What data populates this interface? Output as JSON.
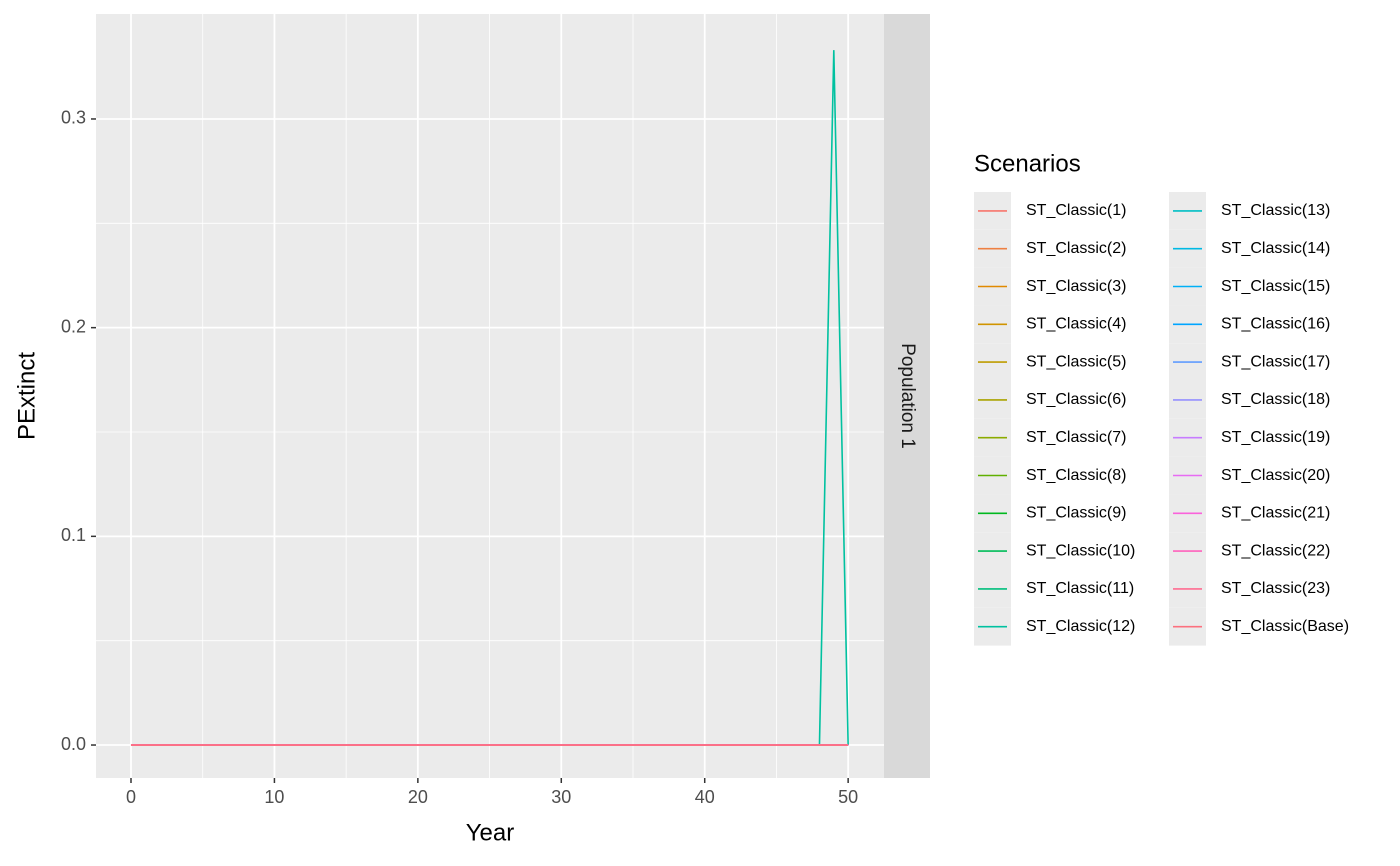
{
  "chart_data": {
    "type": "line",
    "x_label": "Year",
    "y_label": "PExtinct",
    "facet_label": "Population 1",
    "legend_title": "Scenarios",
    "grid": true,
    "xlim": [
      -2.44,
      52.5
    ],
    "ylim": [
      -0.0158,
      0.3503
    ],
    "xticks": [
      0,
      10,
      20,
      30,
      40,
      50
    ],
    "yticks": [
      {
        "value": 0,
        "label": "0.0"
      },
      0.1,
      0.2,
      0.3
    ],
    "x": [
      0,
      1,
      2,
      3,
      4,
      5,
      6,
      7,
      8,
      9,
      10,
      11,
      12,
      13,
      14,
      15,
      16,
      17,
      18,
      19,
      20,
      21,
      22,
      23,
      24,
      25,
      26,
      27,
      28,
      29,
      30,
      31,
      32,
      33,
      34,
      35,
      36,
      37,
      38,
      39,
      40,
      41,
      42,
      43,
      44,
      45,
      46,
      47,
      48,
      49,
      50
    ],
    "series": [
      {
        "name": "ST_Classic(1)",
        "color": "#F8766D",
        "values": [
          0,
          0,
          0,
          0,
          0,
          0,
          0,
          0,
          0,
          0,
          0,
          0,
          0,
          0,
          0,
          0,
          0,
          0,
          0,
          0,
          0,
          0,
          0,
          0,
          0,
          0,
          0,
          0,
          0,
          0,
          0,
          0,
          0,
          0,
          0,
          0,
          0,
          0,
          0,
          0,
          0,
          0,
          0,
          0,
          0,
          0,
          0,
          0,
          0,
          0,
          0
        ]
      },
      {
        "name": "ST_Classic(2)",
        "color": "#EE8043",
        "values": [
          0,
          0,
          0,
          0,
          0,
          0,
          0,
          0,
          0,
          0,
          0,
          0,
          0,
          0,
          0,
          0,
          0,
          0,
          0,
          0,
          0,
          0,
          0,
          0,
          0,
          0,
          0,
          0,
          0,
          0,
          0,
          0,
          0,
          0,
          0,
          0,
          0,
          0,
          0,
          0,
          0,
          0,
          0,
          0,
          0,
          0,
          0,
          0,
          0,
          0,
          0
        ]
      },
      {
        "name": "ST_Classic(3)",
        "color": "#E18A00",
        "values": [
          0,
          0,
          0,
          0,
          0,
          0,
          0,
          0,
          0,
          0,
          0,
          0,
          0,
          0,
          0,
          0,
          0,
          0,
          0,
          0,
          0,
          0,
          0,
          0,
          0,
          0,
          0,
          0,
          0,
          0,
          0,
          0,
          0,
          0,
          0,
          0,
          0,
          0,
          0,
          0,
          0,
          0,
          0,
          0,
          0,
          0,
          0,
          0,
          0,
          0,
          0
        ]
      },
      {
        "name": "ST_Classic(4)",
        "color": "#D09400",
        "values": [
          0,
          0,
          0,
          0,
          0,
          0,
          0,
          0,
          0,
          0,
          0,
          0,
          0,
          0,
          0,
          0,
          0,
          0,
          0,
          0,
          0,
          0,
          0,
          0,
          0,
          0,
          0,
          0,
          0,
          0,
          0,
          0,
          0,
          0,
          0,
          0,
          0,
          0,
          0,
          0,
          0,
          0,
          0,
          0,
          0,
          0,
          0,
          0,
          0,
          0,
          0
        ]
      },
      {
        "name": "ST_Classic(5)",
        "color": "#BE9C00",
        "values": [
          0,
          0,
          0,
          0,
          0,
          0,
          0,
          0,
          0,
          0,
          0,
          0,
          0,
          0,
          0,
          0,
          0,
          0,
          0,
          0,
          0,
          0,
          0,
          0,
          0,
          0,
          0,
          0,
          0,
          0,
          0,
          0,
          0,
          0,
          0,
          0,
          0,
          0,
          0,
          0,
          0,
          0,
          0,
          0,
          0,
          0,
          0,
          0,
          0,
          0,
          0
        ]
      },
      {
        "name": "ST_Classic(6)",
        "color": "#AAA300",
        "values": [
          0,
          0,
          0,
          0,
          0,
          0,
          0,
          0,
          0,
          0,
          0,
          0,
          0,
          0,
          0,
          0,
          0,
          0,
          0,
          0,
          0,
          0,
          0,
          0,
          0,
          0,
          0,
          0,
          0,
          0,
          0,
          0,
          0,
          0,
          0,
          0,
          0,
          0,
          0,
          0,
          0,
          0,
          0,
          0,
          0,
          0,
          0,
          0,
          0,
          0,
          0
        ]
      },
      {
        "name": "ST_Classic(7)",
        "color": "#8CAB00",
        "values": [
          0,
          0,
          0,
          0,
          0,
          0,
          0,
          0,
          0,
          0,
          0,
          0,
          0,
          0,
          0,
          0,
          0,
          0,
          0,
          0,
          0,
          0,
          0,
          0,
          0,
          0,
          0,
          0,
          0,
          0,
          0,
          0,
          0,
          0,
          0,
          0,
          0,
          0,
          0,
          0,
          0,
          0,
          0,
          0,
          0,
          0,
          0,
          0,
          0,
          0,
          0
        ]
      },
      {
        "name": "ST_Classic(8)",
        "color": "#60B000",
        "values": [
          0,
          0,
          0,
          0,
          0,
          0,
          0,
          0,
          0,
          0,
          0,
          0,
          0,
          0,
          0,
          0,
          0,
          0,
          0,
          0,
          0,
          0,
          0,
          0,
          0,
          0,
          0,
          0,
          0,
          0,
          0,
          0,
          0,
          0,
          0,
          0,
          0,
          0,
          0,
          0,
          0,
          0,
          0,
          0,
          0,
          0,
          0,
          0,
          0,
          0,
          0
        ]
      },
      {
        "name": "ST_Classic(9)",
        "color": "#00B81F",
        "values": [
          0,
          0,
          0,
          0,
          0,
          0,
          0,
          0,
          0,
          0,
          0,
          0,
          0,
          0,
          0,
          0,
          0,
          0,
          0,
          0,
          0,
          0,
          0,
          0,
          0,
          0,
          0,
          0,
          0,
          0,
          0,
          0,
          0,
          0,
          0,
          0,
          0,
          0,
          0,
          0,
          0,
          0,
          0,
          0,
          0,
          0,
          0,
          0,
          0,
          0,
          0
        ]
      },
      {
        "name": "ST_Classic(10)",
        "color": "#00BC59",
        "values": [
          0,
          0,
          0,
          0,
          0,
          0,
          0,
          0,
          0,
          0,
          0,
          0,
          0,
          0,
          0,
          0,
          0,
          0,
          0,
          0,
          0,
          0,
          0,
          0,
          0,
          0,
          0,
          0,
          0,
          0,
          0,
          0,
          0,
          0,
          0,
          0,
          0,
          0,
          0,
          0,
          0,
          0,
          0,
          0,
          0,
          0,
          0,
          0,
          0,
          0,
          0
        ]
      },
      {
        "name": "ST_Classic(11)",
        "color": "#00BF7D",
        "values": [
          0,
          0,
          0,
          0,
          0,
          0,
          0,
          0,
          0,
          0,
          0,
          0,
          0,
          0,
          0,
          0,
          0,
          0,
          0,
          0,
          0,
          0,
          0,
          0,
          0,
          0,
          0,
          0,
          0,
          0,
          0,
          0,
          0,
          0,
          0,
          0,
          0,
          0,
          0,
          0,
          0,
          0,
          0,
          0,
          0,
          0,
          0,
          0,
          0,
          0,
          0
        ]
      },
      {
        "name": "ST_Classic(12)",
        "color": "#00C1A0",
        "values": [
          0,
          0,
          0,
          0,
          0,
          0,
          0,
          0,
          0,
          0,
          0,
          0,
          0,
          0,
          0,
          0,
          0,
          0,
          0,
          0,
          0,
          0,
          0,
          0,
          0,
          0,
          0,
          0,
          0,
          0,
          0,
          0,
          0,
          0,
          0,
          0,
          0,
          0,
          0,
          0,
          0,
          0,
          0,
          0,
          0,
          0,
          0,
          0,
          0,
          0.333,
          0
        ]
      },
      {
        "name": "ST_Classic(13)",
        "color": "#00BFC4",
        "values": [
          0,
          0,
          0,
          0,
          0,
          0,
          0,
          0,
          0,
          0,
          0,
          0,
          0,
          0,
          0,
          0,
          0,
          0,
          0,
          0,
          0,
          0,
          0,
          0,
          0,
          0,
          0,
          0,
          0,
          0,
          0,
          0,
          0,
          0,
          0,
          0,
          0,
          0,
          0,
          0,
          0,
          0,
          0,
          0,
          0,
          0,
          0,
          0,
          0,
          0,
          0
        ]
      },
      {
        "name": "ST_Classic(14)",
        "color": "#00B9E3",
        "values": [
          0,
          0,
          0,
          0,
          0,
          0,
          0,
          0,
          0,
          0,
          0,
          0,
          0,
          0,
          0,
          0,
          0,
          0,
          0,
          0,
          0,
          0,
          0,
          0,
          0,
          0,
          0,
          0,
          0,
          0,
          0,
          0,
          0,
          0,
          0,
          0,
          0,
          0,
          0,
          0,
          0,
          0,
          0,
          0,
          0,
          0,
          0,
          0,
          0,
          0,
          0
        ]
      },
      {
        "name": "ST_Classic(15)",
        "color": "#00B0F6",
        "values": [
          0,
          0,
          0,
          0,
          0,
          0,
          0,
          0,
          0,
          0,
          0,
          0,
          0,
          0,
          0,
          0,
          0,
          0,
          0,
          0,
          0,
          0,
          0,
          0,
          0,
          0,
          0,
          0,
          0,
          0,
          0,
          0,
          0,
          0,
          0,
          0,
          0,
          0,
          0,
          0,
          0,
          0,
          0,
          0,
          0,
          0,
          0,
          0,
          0,
          0,
          0
        ]
      },
      {
        "name": "ST_Classic(16)",
        "color": "#00A5FF",
        "values": [
          0,
          0,
          0,
          0,
          0,
          0,
          0,
          0,
          0,
          0,
          0,
          0,
          0,
          0,
          0,
          0,
          0,
          0,
          0,
          0,
          0,
          0,
          0,
          0,
          0,
          0,
          0,
          0,
          0,
          0,
          0,
          0,
          0,
          0,
          0,
          0,
          0,
          0,
          0,
          0,
          0,
          0,
          0,
          0,
          0,
          0,
          0,
          0,
          0,
          0,
          0
        ]
      },
      {
        "name": "ST_Classic(17)",
        "color": "#619CFF",
        "values": [
          0,
          0,
          0,
          0,
          0,
          0,
          0,
          0,
          0,
          0,
          0,
          0,
          0,
          0,
          0,
          0,
          0,
          0,
          0,
          0,
          0,
          0,
          0,
          0,
          0,
          0,
          0,
          0,
          0,
          0,
          0,
          0,
          0,
          0,
          0,
          0,
          0,
          0,
          0,
          0,
          0,
          0,
          0,
          0,
          0,
          0,
          0,
          0,
          0,
          0,
          0
        ]
      },
      {
        "name": "ST_Classic(18)",
        "color": "#9590FF",
        "values": [
          0,
          0,
          0,
          0,
          0,
          0,
          0,
          0,
          0,
          0,
          0,
          0,
          0,
          0,
          0,
          0,
          0,
          0,
          0,
          0,
          0,
          0,
          0,
          0,
          0,
          0,
          0,
          0,
          0,
          0,
          0,
          0,
          0,
          0,
          0,
          0,
          0,
          0,
          0,
          0,
          0,
          0,
          0,
          0,
          0,
          0,
          0,
          0,
          0,
          0,
          0
        ]
      },
      {
        "name": "ST_Classic(19)",
        "color": "#C77CFF",
        "values": [
          0,
          0,
          0,
          0,
          0,
          0,
          0,
          0,
          0,
          0,
          0,
          0,
          0,
          0,
          0,
          0,
          0,
          0,
          0,
          0,
          0,
          0,
          0,
          0,
          0,
          0,
          0,
          0,
          0,
          0,
          0,
          0,
          0,
          0,
          0,
          0,
          0,
          0,
          0,
          0,
          0,
          0,
          0,
          0,
          0,
          0,
          0,
          0,
          0,
          0,
          0
        ]
      },
      {
        "name": "ST_Classic(20)",
        "color": "#E76BF3",
        "values": [
          0,
          0,
          0,
          0,
          0,
          0,
          0,
          0,
          0,
          0,
          0,
          0,
          0,
          0,
          0,
          0,
          0,
          0,
          0,
          0,
          0,
          0,
          0,
          0,
          0,
          0,
          0,
          0,
          0,
          0,
          0,
          0,
          0,
          0,
          0,
          0,
          0,
          0,
          0,
          0,
          0,
          0,
          0,
          0,
          0,
          0,
          0,
          0,
          0,
          0,
          0
        ]
      },
      {
        "name": "ST_Classic(21)",
        "color": "#FA62DB",
        "values": [
          0,
          0,
          0,
          0,
          0,
          0,
          0,
          0,
          0,
          0,
          0,
          0,
          0,
          0,
          0,
          0,
          0,
          0,
          0,
          0,
          0,
          0,
          0,
          0,
          0,
          0,
          0,
          0,
          0,
          0,
          0,
          0,
          0,
          0,
          0,
          0,
          0,
          0,
          0,
          0,
          0,
          0,
          0,
          0,
          0,
          0,
          0,
          0,
          0,
          0,
          0
        ]
      },
      {
        "name": "ST_Classic(22)",
        "color": "#FF62BC",
        "values": [
          0,
          0,
          0,
          0,
          0,
          0,
          0,
          0,
          0,
          0,
          0,
          0,
          0,
          0,
          0,
          0,
          0,
          0,
          0,
          0,
          0,
          0,
          0,
          0,
          0,
          0,
          0,
          0,
          0,
          0,
          0,
          0,
          0,
          0,
          0,
          0,
          0,
          0,
          0,
          0,
          0,
          0,
          0,
          0,
          0,
          0,
          0,
          0,
          0,
          0,
          0
        ]
      },
      {
        "name": "ST_Classic(23)",
        "color": "#FF6C91",
        "values": [
          0,
          0,
          0,
          0,
          0,
          0,
          0,
          0,
          0,
          0,
          0,
          0,
          0,
          0,
          0,
          0,
          0,
          0,
          0,
          0,
          0,
          0,
          0,
          0,
          0,
          0,
          0,
          0,
          0,
          0,
          0,
          0,
          0,
          0,
          0,
          0,
          0,
          0,
          0,
          0,
          0,
          0,
          0,
          0,
          0,
          0,
          0,
          0,
          0,
          0,
          0
        ]
      },
      {
        "name": "ST_Classic(Base)",
        "color": "#FC717F",
        "values": [
          0,
          0,
          0,
          0,
          0,
          0,
          0,
          0,
          0,
          0,
          0,
          0,
          0,
          0,
          0,
          0,
          0,
          0,
          0,
          0,
          0,
          0,
          0,
          0,
          0,
          0,
          0,
          0,
          0,
          0,
          0,
          0,
          0,
          0,
          0,
          0,
          0,
          0,
          0,
          0,
          0,
          0,
          0,
          0,
          0,
          0,
          0,
          0,
          0,
          0,
          0
        ]
      }
    ]
  }
}
